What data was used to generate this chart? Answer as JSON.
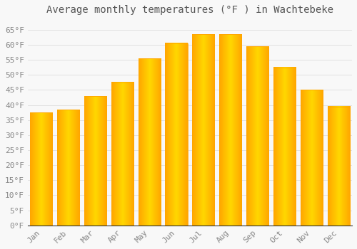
{
  "title": "Average monthly temperatures (°F ) in Wachtebeke",
  "months": [
    "Jan",
    "Feb",
    "Mar",
    "Apr",
    "May",
    "Jun",
    "Jul",
    "Aug",
    "Sep",
    "Oct",
    "Nov",
    "Dec"
  ],
  "values": [
    37.5,
    38.5,
    43.0,
    47.5,
    55.5,
    60.5,
    63.5,
    63.5,
    59.5,
    52.5,
    45.0,
    39.5
  ],
  "bar_color_center": "#FFD700",
  "bar_color_edge": "#FFA500",
  "background_color": "#F8F8F8",
  "grid_color": "#DDDDDD",
  "text_color": "#888888",
  "axis_color": "#333333",
  "ylim": [
    0,
    68
  ],
  "yticks": [
    0,
    5,
    10,
    15,
    20,
    25,
    30,
    35,
    40,
    45,
    50,
    55,
    60,
    65
  ],
  "ytick_labels": [
    "0°F",
    "5°F",
    "10°F",
    "15°F",
    "20°F",
    "25°F",
    "30°F",
    "35°F",
    "40°F",
    "45°F",
    "50°F",
    "55°F",
    "60°F",
    "65°F"
  ],
  "title_fontsize": 10,
  "tick_fontsize": 8,
  "bar_width": 0.82
}
